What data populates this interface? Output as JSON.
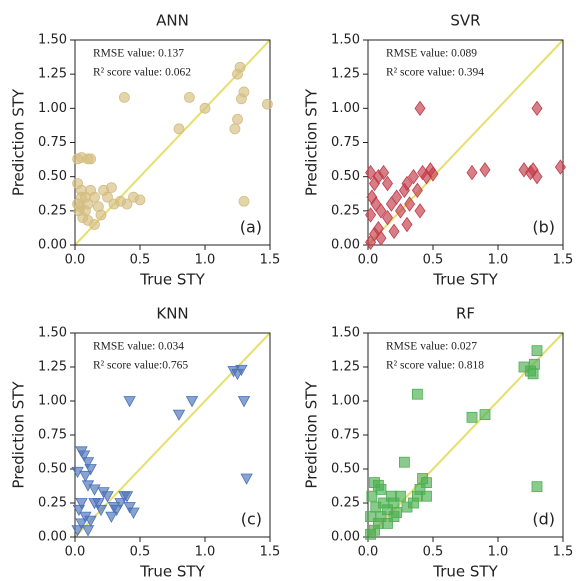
{
  "chart_data": [
    {
      "type": "scatter",
      "title": "ANN",
      "xlabel": "True STY",
      "ylabel": "Prediction STY",
      "annotations": [
        "RMSE value:  0.137",
        "R² score value: 0.062"
      ],
      "panel_label": "(a)",
      "color": "#d4bd80",
      "marker": "circle",
      "diagonal": true,
      "diagonal_color": "#e6df6c",
      "x": [
        0.02,
        0.05,
        0.1,
        0.12,
        0.02,
        0.05,
        0.08,
        0.1,
        0.03,
        0.06,
        0.1,
        0.15,
        0.2,
        0.25,
        0.3,
        0.35,
        0.38,
        0.45,
        0.5,
        0.02,
        0.04,
        0.12,
        0.15,
        0.18,
        0.22,
        0.28,
        0.4,
        0.8,
        0.88,
        1.0,
        1.25,
        1.23,
        1.25,
        1.27,
        1.28,
        1.3,
        1.3,
        1.48,
        0.05,
        0.08
      ],
      "values": [
        0.63,
        0.64,
        0.63,
        0.63,
        0.45,
        0.4,
        0.35,
        0.3,
        0.25,
        0.2,
        0.18,
        0.15,
        0.22,
        0.35,
        0.3,
        0.32,
        1.08,
        0.35,
        0.33,
        0.3,
        0.28,
        0.4,
        0.35,
        0.28,
        0.4,
        0.42,
        0.3,
        0.85,
        1.08,
        1.0,
        0.92,
        0.85,
        1.25,
        1.3,
        1.07,
        1.12,
        0.32,
        1.03,
        0.35,
        0.25
      ],
      "xlim": [
        0,
        1.5
      ],
      "ylim": [
        0,
        1.5
      ],
      "xticks": [
        {
          "value": 0,
          "label": "0.0"
        },
        {
          "value": 0.5,
          "label": "0.5"
        },
        {
          "value": 1,
          "label": "1.0"
        },
        {
          "value": 1.5,
          "label": "1.5"
        }
      ],
      "yticks": [
        {
          "value": 0,
          "label": "0.00"
        },
        {
          "value": 0.25,
          "label": "0.25"
        },
        {
          "value": 0.5,
          "label": "0.50"
        },
        {
          "value": 0.75,
          "label": "0.75"
        },
        {
          "value": 1,
          "label": "1.00"
        },
        {
          "value": 1.25,
          "label": "1.25"
        },
        {
          "value": 1.5,
          "label": "1.50"
        }
      ]
    },
    {
      "type": "scatter",
      "title": "SVR",
      "xlabel": "True STY",
      "ylabel": "Prediction STY",
      "annotations": [
        "RMSE value:  0.089",
        "R² score value: 0.394"
      ],
      "panel_label": "(b)",
      "color": "#c23b48",
      "marker": "diamond",
      "diagonal": true,
      "diagonal_color": "#e6df6c",
      "x": [
        0.02,
        0.05,
        0.08,
        0.1,
        0.02,
        0.03,
        0.05,
        0.02,
        0.08,
        0.12,
        0.1,
        0.15,
        0.18,
        0.2,
        0.22,
        0.25,
        0.28,
        0.3,
        0.32,
        0.35,
        0.38,
        0.4,
        0.42,
        0.45,
        0.48,
        0.5,
        0.3,
        0.4,
        0.8,
        0.9,
        1.2,
        1.25,
        1.3,
        1.27,
        1.3,
        1.48,
        0.15,
        0.06
      ],
      "values": [
        0.02,
        0.08,
        0.12,
        0.05,
        0.22,
        0.35,
        0.45,
        0.53,
        0.5,
        0.53,
        0.25,
        0.2,
        0.3,
        0.1,
        0.35,
        0.25,
        0.4,
        0.45,
        0.3,
        0.5,
        0.4,
        1.0,
        0.53,
        0.5,
        0.55,
        0.52,
        0.15,
        0.25,
        0.53,
        0.55,
        0.55,
        0.53,
        0.5,
        0.55,
        1.0,
        0.57,
        0.45,
        0.3
      ],
      "xlim": [
        0,
        1.5
      ],
      "ylim": [
        0,
        1.5
      ],
      "xticks": [
        {
          "value": 0,
          "label": "0.0"
        },
        {
          "value": 0.5,
          "label": "0.5"
        },
        {
          "value": 1,
          "label": "1.0"
        },
        {
          "value": 1.5,
          "label": "1.5"
        }
      ],
      "yticks": [
        {
          "value": 0,
          "label": "0.00"
        },
        {
          "value": 0.25,
          "label": "0.25"
        },
        {
          "value": 0.5,
          "label": "0.50"
        },
        {
          "value": 0.75,
          "label": "0.75"
        },
        {
          "value": 1,
          "label": "1.00"
        },
        {
          "value": 1.25,
          "label": "1.25"
        },
        {
          "value": 1.5,
          "label": "1.50"
        }
      ]
    },
    {
      "type": "scatter",
      "title": "KNN",
      "xlabel": "True STY",
      "ylabel": "Prediction STY",
      "annotations": [
        "RMSE value:  0.034",
        "R² score value:0.765"
      ],
      "panel_label": "(c)",
      "color": "#4a72b8",
      "marker": "triangle-down",
      "diagonal": true,
      "diagonal_color": "#e6df6c",
      "x": [
        0.02,
        0.05,
        0.07,
        0.1,
        0.08,
        0.12,
        0.1,
        0.15,
        0.03,
        0.05,
        0.08,
        0.02,
        0.1,
        0.12,
        0.18,
        0.2,
        0.25,
        0.28,
        0.3,
        0.32,
        0.35,
        0.38,
        0.4,
        0.42,
        0.45,
        0.42,
        0.15,
        0.22,
        0.8,
        0.9,
        1.22,
        1.25,
        1.28,
        1.3,
        1.32,
        0.05
      ],
      "values": [
        0.48,
        0.63,
        0.6,
        0.55,
        0.45,
        0.5,
        0.38,
        0.35,
        0.2,
        0.1,
        0.15,
        0.05,
        0.05,
        0.12,
        0.25,
        0.2,
        0.3,
        0.15,
        0.22,
        0.2,
        0.25,
        0.3,
        0.3,
        0.22,
        0.18,
        1.0,
        0.25,
        0.33,
        0.9,
        1.0,
        1.22,
        1.2,
        1.23,
        1.0,
        0.43,
        0.25
      ],
      "xlim": [
        0,
        1.5
      ],
      "ylim": [
        0,
        1.5
      ],
      "xticks": [
        {
          "value": 0,
          "label": "0.0"
        },
        {
          "value": 0.5,
          "label": "0.5"
        },
        {
          "value": 1,
          "label": "1.0"
        },
        {
          "value": 1.5,
          "label": "1.5"
        }
      ],
      "yticks": [
        {
          "value": 0,
          "label": "0.00"
        },
        {
          "value": 0.25,
          "label": "0.25"
        },
        {
          "value": 0.5,
          "label": "0.50"
        },
        {
          "value": 0.75,
          "label": "0.75"
        },
        {
          "value": 1,
          "label": "1.00"
        },
        {
          "value": 1.25,
          "label": "1.25"
        },
        {
          "value": 1.5,
          "label": "1.50"
        }
      ]
    },
    {
      "type": "scatter",
      "title": "RF",
      "xlabel": "True STY",
      "ylabel": "Prediction STY",
      "annotations": [
        "RMSE value:  0.027",
        "R² score value: 0.818"
      ],
      "panel_label": "(d)",
      "color": "#4caf50",
      "marker": "square",
      "diagonal": true,
      "diagonal_color": "#e6df6c",
      "x": [
        0.02,
        0.05,
        0.08,
        0.1,
        0.03,
        0.05,
        0.08,
        0.1,
        0.12,
        0.15,
        0.18,
        0.2,
        0.22,
        0.25,
        0.28,
        0.3,
        0.35,
        0.38,
        0.4,
        0.42,
        0.45,
        0.45,
        0.38,
        0.2,
        0.15,
        0.8,
        0.9,
        1.2,
        1.25,
        1.27,
        1.28,
        1.3,
        1.3,
        0.02,
        0.06
      ],
      "values": [
        0.02,
        0.05,
        0.1,
        0.15,
        0.3,
        0.4,
        0.38,
        0.35,
        0.25,
        0.2,
        0.3,
        0.25,
        0.18,
        0.3,
        0.55,
        0.22,
        0.25,
        0.3,
        0.35,
        0.43,
        0.4,
        0.3,
        1.05,
        0.15,
        0.1,
        0.88,
        0.9,
        1.25,
        1.22,
        1.2,
        1.27,
        1.37,
        0.37,
        0.15,
        0.22
      ],
      "xlim": [
        0,
        1.5
      ],
      "ylim": [
        0,
        1.5
      ],
      "xticks": [
        {
          "value": 0,
          "label": "0.0"
        },
        {
          "value": 0.5,
          "label": "0.5"
        },
        {
          "value": 1,
          "label": "1.0"
        },
        {
          "value": 1.5,
          "label": "1.5"
        }
      ],
      "yticks": [
        {
          "value": 0,
          "label": "0.00"
        },
        {
          "value": 0.25,
          "label": "0.25"
        },
        {
          "value": 0.5,
          "label": "0.50"
        },
        {
          "value": 0.75,
          "label": "0.75"
        },
        {
          "value": 1,
          "label": "1.00"
        },
        {
          "value": 1.25,
          "label": "1.25"
        },
        {
          "value": 1.5,
          "label": "1.50"
        }
      ]
    }
  ]
}
